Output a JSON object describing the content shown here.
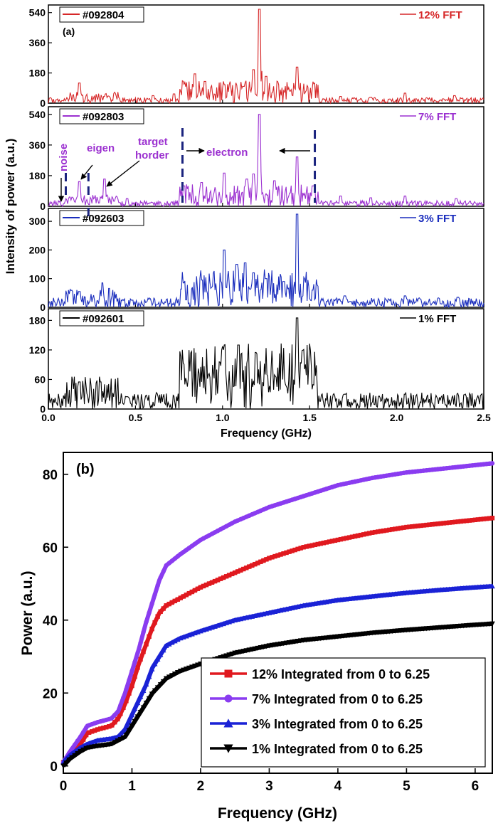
{
  "chart_data": [
    {
      "type": "line",
      "panel_label": "(a)",
      "xlabel": "Frequency (GHz)",
      "ylabel": "Intensity of power (a.u.)",
      "xlim": [
        0.0,
        2.5
      ],
      "x_ticks": [
        "0.0",
        "0.5",
        "1.0",
        "1.5",
        "2.0",
        "2.5"
      ],
      "subpanels": [
        {
          "shot": "#092804",
          "fft_label": "12% FFT",
          "color": "#d62728",
          "ylim": [
            0,
            560
          ],
          "y_ticks": [
            "0",
            "180",
            "360",
            "540"
          ],
          "peaks": [
            [
              0.05,
              20
            ],
            [
              0.18,
              120
            ],
            [
              0.32,
              40
            ],
            [
              0.6,
              45
            ],
            [
              0.72,
              55
            ],
            [
              0.84,
              175
            ],
            [
              0.9,
              130
            ],
            [
              1.01,
              110
            ],
            [
              1.12,
              100
            ],
            [
              1.18,
              200
            ],
            [
              1.21,
              560
            ],
            [
              1.25,
              160
            ],
            [
              1.43,
              215
            ],
            [
              1.52,
              75
            ],
            [
              1.68,
              40
            ],
            [
              1.85,
              35
            ],
            [
              2.05,
              60
            ],
            [
              2.33,
              45
            ]
          ]
        },
        {
          "shot": "#092803",
          "fft_label": "7% FFT",
          "color": "#9b30d0",
          "ylim": [
            0,
            560
          ],
          "y_ticks": [
            "0",
            "180",
            "360",
            "540"
          ],
          "peaks": [
            [
              0.06,
              25
            ],
            [
              0.18,
              145
            ],
            [
              0.32,
              160
            ],
            [
              0.45,
              45
            ],
            [
              0.78,
              120
            ],
            [
              0.88,
              140
            ],
            [
              1.01,
              195
            ],
            [
              1.14,
              160
            ],
            [
              1.18,
              190
            ],
            [
              1.21,
              540
            ],
            [
              1.3,
              150
            ],
            [
              1.43,
              290
            ],
            [
              1.52,
              120
            ],
            [
              1.68,
              60
            ],
            [
              1.85,
              50
            ],
            [
              2.05,
              60
            ],
            [
              2.34,
              45
            ]
          ],
          "annotations": [
            "noise",
            "eigen",
            "target",
            "horder",
            "electron"
          ]
        },
        {
          "shot": "#092603",
          "fft_label": "3% FFT",
          "color": "#1a2dbd",
          "ylim": [
            0,
            330
          ],
          "y_ticks": [
            "0",
            "100",
            "200",
            "300"
          ],
          "peaks": [
            [
              0.06,
              20
            ],
            [
              0.18,
              55
            ],
            [
              0.31,
              85
            ],
            [
              0.48,
              25
            ],
            [
              0.78,
              85
            ],
            [
              0.88,
              95
            ],
            [
              1.01,
              200
            ],
            [
              1.08,
              150
            ],
            [
              1.13,
              155
            ],
            [
              1.18,
              120
            ],
            [
              1.25,
              100
            ],
            [
              1.35,
              90
            ],
            [
              1.43,
              325
            ],
            [
              1.52,
              60
            ],
            [
              1.7,
              40
            ],
            [
              2.05,
              40
            ],
            [
              2.35,
              35
            ]
          ]
        },
        {
          "shot": "#092601",
          "fft_label": "1% FFT",
          "color": "#000000",
          "ylim": [
            0,
            195
          ],
          "y_ticks": [
            "0",
            "60",
            "120",
            "180"
          ],
          "peaks": [
            [
              0.06,
              20
            ],
            [
              0.18,
              55
            ],
            [
              0.3,
              55
            ],
            [
              0.45,
              25
            ],
            [
              0.78,
              50
            ],
            [
              0.88,
              55
            ],
            [
              1.0,
              120
            ],
            [
              1.09,
              130
            ],
            [
              1.19,
              115
            ],
            [
              1.25,
              70
            ],
            [
              1.35,
              60
            ],
            [
              1.43,
              185
            ],
            [
              1.52,
              40
            ],
            [
              1.7,
              30
            ],
            [
              2.05,
              30
            ],
            [
              2.35,
              25
            ]
          ]
        }
      ]
    },
    {
      "type": "line",
      "panel_label": "(b)",
      "xlabel": "Frequency (GHz)",
      "ylabel": "Power (a.u.)",
      "xlim": [
        0,
        6.25
      ],
      "ylim": [
        -2,
        86
      ],
      "x_ticks": [
        "0",
        "1",
        "2",
        "3",
        "4",
        "5",
        "6"
      ],
      "y_ticks": [
        "0",
        "20",
        "40",
        "60",
        "80"
      ],
      "legend_position": "bottom-right",
      "series": [
        {
          "name": "12% Integrated from 0 to 6.25",
          "color": "#e0191f",
          "marker": "square",
          "x": [
            0,
            0.1,
            0.25,
            0.35,
            0.5,
            0.7,
            0.8,
            0.9,
            1.0,
            1.1,
            1.2,
            1.3,
            1.4,
            1.5,
            1.7,
            2.0,
            2.5,
            3.0,
            3.5,
            4.0,
            4.5,
            5.0,
            5.5,
            6.0,
            6.25
          ],
          "y": [
            1,
            3,
            6,
            9,
            10,
            11,
            13,
            17,
            22,
            28,
            33,
            38,
            42,
            44,
            46,
            49,
            53,
            57,
            60,
            62,
            64,
            65.5,
            66.5,
            67.5,
            68
          ]
        },
        {
          "name": "7% Integrated from 0 to 6.25",
          "color": "#8a3cf0",
          "marker": "circle",
          "x": [
            0,
            0.1,
            0.25,
            0.35,
            0.5,
            0.7,
            0.8,
            0.9,
            1.0,
            1.1,
            1.2,
            1.3,
            1.4,
            1.5,
            1.7,
            2.0,
            2.5,
            3.0,
            3.5,
            4.0,
            4.5,
            5.0,
            5.5,
            6.0,
            6.25
          ],
          "y": [
            1,
            4,
            8,
            11,
            12,
            13,
            15,
            20,
            26,
            32,
            39,
            45,
            51,
            55,
            58,
            62,
            67,
            71,
            74,
            77,
            79,
            80.5,
            81.5,
            82.5,
            83
          ]
        },
        {
          "name": "3% Integrated from 0 to 6.25",
          "color": "#1a22d6",
          "marker": "triangle-up",
          "x": [
            0,
            0.1,
            0.25,
            0.35,
            0.5,
            0.7,
            0.8,
            0.9,
            1.0,
            1.1,
            1.2,
            1.3,
            1.4,
            1.5,
            1.7,
            2.0,
            2.5,
            3.0,
            3.5,
            4.0,
            4.5,
            5.0,
            5.5,
            6.0,
            6.25
          ],
          "y": [
            1,
            3,
            5,
            6,
            7,
            7.5,
            8,
            10,
            14,
            18,
            22,
            27,
            30,
            33,
            35,
            37,
            40,
            42,
            44,
            45.5,
            46.5,
            47.5,
            48.3,
            49,
            49.3
          ]
        },
        {
          "name": "1% Integrated from 0 to 6.25",
          "color": "#000000",
          "marker": "triangle-down",
          "x": [
            0,
            0.1,
            0.25,
            0.35,
            0.5,
            0.7,
            0.8,
            0.9,
            1.0,
            1.1,
            1.2,
            1.3,
            1.4,
            1.5,
            1.7,
            2.0,
            2.5,
            3.0,
            3.5,
            4.0,
            4.5,
            5.0,
            5.5,
            6.0,
            6.25
          ],
          "y": [
            0,
            2,
            4,
            5,
            5.5,
            6,
            7,
            8,
            11,
            14,
            17,
            20,
            22,
            24,
            26,
            28,
            31,
            33,
            34.5,
            35.5,
            36.5,
            37.3,
            38,
            38.7,
            39
          ]
        }
      ]
    }
  ]
}
